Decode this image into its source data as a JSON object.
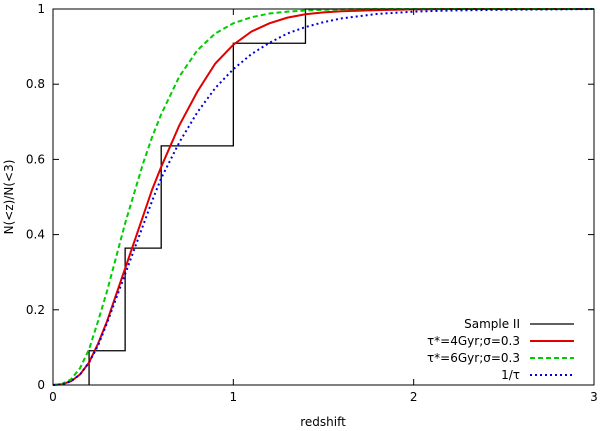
{
  "chart_data": {
    "type": "line",
    "xlabel": "redshift",
    "ylabel": "N(<z)/N(<3)",
    "xlim": [
      0,
      3
    ],
    "ylim": [
      0,
      1
    ],
    "xticks": [
      0,
      1,
      2,
      3
    ],
    "xtick_labels": [
      "0",
      "1",
      "2",
      "3"
    ],
    "yticks": [
      0,
      0.2,
      0.4,
      0.6,
      0.8,
      1
    ],
    "ytick_labels": [
      "0",
      "0.2",
      "0.4",
      "0.6",
      "0.8",
      "1"
    ],
    "grid": false,
    "legend_position": "bottom-right",
    "series": [
      {
        "name": "Sample II",
        "style": "step",
        "color": "#000000",
        "dash": "solid",
        "x": [
          0.2,
          0.2,
          0.4,
          0.4,
          0.6,
          0.6,
          1.0,
          1.0,
          1.4,
          1.4,
          3.0
        ],
        "y": [
          0.0,
          0.091,
          0.091,
          0.364,
          0.364,
          0.636,
          0.636,
          0.909,
          0.909,
          1.0,
          1.0
        ]
      },
      {
        "name": "τ*=4Gyr;σ=0.3",
        "color": "#e00000",
        "dash": "solid",
        "x": [
          0,
          0.05,
          0.1,
          0.15,
          0.2,
          0.25,
          0.3,
          0.35,
          0.4,
          0.45,
          0.5,
          0.55,
          0.6,
          0.7,
          0.8,
          0.9,
          1.0,
          1.1,
          1.2,
          1.3,
          1.4,
          1.5,
          1.6,
          1.8,
          2.0,
          2.2,
          2.5,
          3.0
        ],
        "y": [
          0,
          0.002,
          0.01,
          0.028,
          0.06,
          0.11,
          0.17,
          0.24,
          0.31,
          0.38,
          0.45,
          0.52,
          0.58,
          0.69,
          0.78,
          0.855,
          0.905,
          0.94,
          0.962,
          0.977,
          0.986,
          0.991,
          0.994,
          0.997,
          0.999,
          1.0,
          1.0,
          1.0
        ]
      },
      {
        "name": "τ*=6Gyr;σ=0.3",
        "color": "#00cc00",
        "dash": "dashed",
        "x": [
          0,
          0.05,
          0.1,
          0.15,
          0.2,
          0.25,
          0.3,
          0.35,
          0.4,
          0.45,
          0.5,
          0.55,
          0.6,
          0.7,
          0.8,
          0.9,
          1.0,
          1.1,
          1.2,
          1.3,
          1.4,
          1.5,
          1.6,
          1.8,
          2.0,
          2.5,
          3.0
        ],
        "y": [
          0,
          0.003,
          0.015,
          0.045,
          0.095,
          0.17,
          0.25,
          0.34,
          0.43,
          0.51,
          0.59,
          0.66,
          0.72,
          0.82,
          0.89,
          0.935,
          0.962,
          0.978,
          0.988,
          0.993,
          0.996,
          0.998,
          0.999,
          1.0,
          1.0,
          1.0,
          1.0
        ]
      },
      {
        "name": "1/τ",
        "color": "#0000dd",
        "dash": "dotted",
        "x": [
          0,
          0.05,
          0.1,
          0.15,
          0.2,
          0.25,
          0.3,
          0.35,
          0.4,
          0.45,
          0.5,
          0.55,
          0.6,
          0.7,
          0.8,
          0.9,
          1.0,
          1.1,
          1.2,
          1.3,
          1.4,
          1.5,
          1.6,
          1.8,
          2.0,
          2.2,
          2.5,
          2.8,
          3.0
        ],
        "y": [
          0,
          0.002,
          0.01,
          0.028,
          0.06,
          0.105,
          0.165,
          0.23,
          0.295,
          0.36,
          0.425,
          0.49,
          0.55,
          0.645,
          0.725,
          0.79,
          0.84,
          0.88,
          0.91,
          0.935,
          0.952,
          0.965,
          0.975,
          0.987,
          0.993,
          0.996,
          0.998,
          0.999,
          1.0
        ]
      }
    ]
  }
}
